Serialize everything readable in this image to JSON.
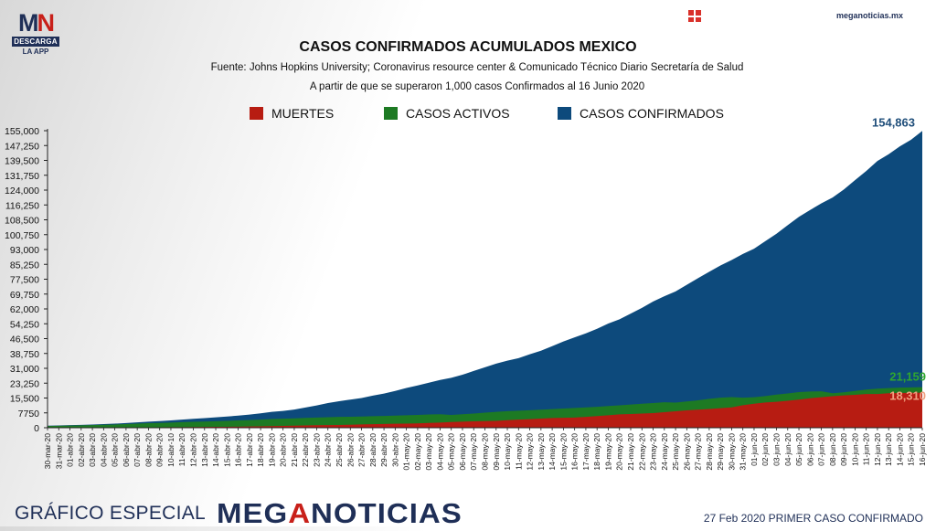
{
  "header": {
    "logo_mark_left": "M",
    "logo_mark_right": "N",
    "logo_band": "DESCARGA",
    "logo_sub": "LA APP",
    "icon": "grid-icon",
    "site": "meganoticias.mx"
  },
  "footer": {
    "special": "GRÁFICO ESPECIAL",
    "brand_prefix": "MEG",
    "brand_accent": "A",
    "brand_suffix": "NOTICIAS",
    "note": "27 Feb 2020 PRIMER CASO CONFIRMADO"
  },
  "chart_data": {
    "type": "area",
    "title": "CASOS CONFIRMADOS ACUMULADOS MEXICO",
    "subtitle": "Fuente: Johns Hopkins University; Coronavirus resource center & Comunicado Técnico Diario Secretaría de Salud",
    "subtitle2": "A partir de que se superaron 1,000 casos Confirmados al 16 Junio 2020",
    "ylim": [
      0,
      155000
    ],
    "grid": false,
    "legend_placement": "top",
    "y_ticks": [
      {
        "value": 0,
        "label": "0"
      },
      {
        "value": 7750,
        "label": "7750"
      },
      {
        "value": 15500,
        "label": "15,500"
      },
      {
        "value": 23250,
        "label": "23,250"
      },
      {
        "value": 31000,
        "label": "31,000"
      },
      {
        "value": 38750,
        "label": "38,750"
      },
      {
        "value": 46500,
        "label": "46,500"
      },
      {
        "value": 54250,
        "label": "54,250"
      },
      {
        "value": 62000,
        "label": "62,000"
      },
      {
        "value": 69750,
        "label": "69,750"
      },
      {
        "value": 77500,
        "label": "77,500"
      },
      {
        "value": 85250,
        "label": "85,250"
      },
      {
        "value": 93000,
        "label": "93,000"
      },
      {
        "value": 100750,
        "label": "100,750"
      },
      {
        "value": 108500,
        "label": "108,500"
      },
      {
        "value": 116250,
        "label": "116,250"
      },
      {
        "value": 124000,
        "label": "124,000"
      },
      {
        "value": 131750,
        "label": "131,750"
      },
      {
        "value": 139500,
        "label": "139,500"
      },
      {
        "value": 147250,
        "label": "147,250"
      },
      {
        "value": 155000,
        "label": "155,000"
      }
    ],
    "categories": [
      "30-mar-20",
      "31-mar-20",
      "01-abr-20",
      "02-abr-20",
      "03-abr-20",
      "04-abr-20",
      "05-abr-20",
      "06-abr-20",
      "07-abr-20",
      "08-abr-20",
      "09-abr-20",
      "10-abr-10",
      "11-abr-20",
      "12-abr-20",
      "13-abr-20",
      "14-abr-20",
      "15-abr-20",
      "16-abr-20",
      "17-abr-20",
      "18-abr-20",
      "19-abr-20",
      "20-abr-20",
      "21-abr-20",
      "22-abr-20",
      "23-abr-20",
      "24-abr-20",
      "25-abr-20",
      "26-abr-20",
      "27-abr-20",
      "28-abr-20",
      "29-abr-20",
      "30-abr-20",
      "01-may-20",
      "02-may-20",
      "03-may-20",
      "04-may-20",
      "05-may-20",
      "06-may-20",
      "07-may-20",
      "08-may-20",
      "09-may-20",
      "10-may-20",
      "11-may-20",
      "12-may-20",
      "13-may-20",
      "14-may-20",
      "15-may-20",
      "16-may-20",
      "17-may-20",
      "18-may-20",
      "19-may-20",
      "20-may-20",
      "21-may-20",
      "22-may-20",
      "23-may-20",
      "24-may-20",
      "25-may-20",
      "26-may-20",
      "27-may-20",
      "28-may-20",
      "29-may-20",
      "30-may-20",
      "31-may-20",
      "01-jun-20",
      "02-jun-20",
      "03-jun-20",
      "04-jun-20",
      "05-jun-20",
      "06-jun-20",
      "07-jun-20",
      "08-jun-20",
      "09-jun-20",
      "10-jun-20",
      "11-jun-20",
      "12-jun-20",
      "13-jun-20",
      "14-jun-20",
      "15-jun-20",
      "16-jun-20"
    ],
    "series": [
      {
        "name": "CASOS CONFIRMADOS",
        "color": "#0d4a7c",
        "values": [
          1094,
          1215,
          1378,
          1510,
          1688,
          1890,
          2143,
          2439,
          2785,
          3181,
          3441,
          3844,
          4219,
          4661,
          5014,
          5399,
          5847,
          6297,
          6875,
          7497,
          8261,
          8772,
          9501,
          10544,
          11633,
          12872,
          13842,
          14677,
          15529,
          16752,
          17799,
          19224,
          20739,
          22088,
          23471,
          24905,
          26025,
          27634,
          29616,
          31522,
          33460,
          35022,
          36327,
          38324,
          40186,
          42595,
          45032,
          47144,
          49219,
          51633,
          54346,
          56594,
          59567,
          62527,
          65856,
          68620,
          71105,
          74560,
          78023,
          81400,
          84627,
          87512,
          90664,
          93435,
          97326,
          101238,
          105680,
          110026,
          113619,
          117103,
          120102,
          124301,
          129184,
          133974,
          139196,
          142690,
          146837,
          150264,
          154863
        ]
      },
      {
        "name": "CASOS ACTIVOS",
        "color": "#1d7a23",
        "values": [
          900,
          1000,
          1130,
          1240,
          1380,
          1520,
          1700,
          1900,
          2150,
          2380,
          2500,
          2700,
          2900,
          3100,
          3250,
          3400,
          3600,
          3800,
          4000,
          4250,
          4500,
          4700,
          4900,
          5100,
          5300,
          5500,
          5650,
          5750,
          5850,
          6000,
          6150,
          6300,
          6500,
          6700,
          6900,
          7050,
          6700,
          7050,
          7400,
          7900,
          8300,
          8650,
          8900,
          9100,
          9400,
          9700,
          10000,
          10300,
          10600,
          10900,
          11300,
          11700,
          12100,
          12500,
          12900,
          13300,
          13100,
          13700,
          14300,
          15100,
          15700,
          16000,
          15700,
          15900,
          16500,
          17300,
          17900,
          18600,
          18900,
          19000,
          18000,
          18500,
          19200,
          19900,
          20400,
          20700,
          20900,
          21050,
          21159
        ]
      },
      {
        "name": "MUERTES",
        "color": "#b71c12",
        "values": [
          28,
          29,
          37,
          50,
          79,
          94,
          125,
          141,
          174,
          194,
          233,
          273,
          296,
          332,
          406,
          449,
          486,
          546,
          650,
          712,
          857,
          970,
          1069,
          1221,
          1305,
          1351,
          1434,
          1569,
          1732,
          1859,
          1972,
          2061,
          2154,
          2271,
          2507,
          2704,
          2961,
          3160,
          3353,
          3465,
          3573,
          3926,
          4220,
          4477,
          4767,
          5045,
          5177,
          5332,
          5666,
          6090,
          6510,
          6989,
          7179,
          7394,
          7633,
          8134,
          8597,
          9044,
          9415,
          9779,
          10167,
          10637,
          11729,
          12545,
          13170,
          13511,
          14053,
          14649,
          15357,
          15944,
          16448,
          16872,
          17141,
          17580,
          17580,
          18000,
          18150,
          18250,
          18310
        ]
      }
    ],
    "annotations": [
      {
        "series": "CASOS CONFIRMADOS",
        "label": "154,863",
        "color": "#1f4e7a"
      },
      {
        "series": "CASOS ACTIVOS",
        "label": "21,159",
        "color": "#2fa62f"
      },
      {
        "series": "MUERTES",
        "label": "18,310",
        "color": "#f0a080"
      }
    ]
  }
}
